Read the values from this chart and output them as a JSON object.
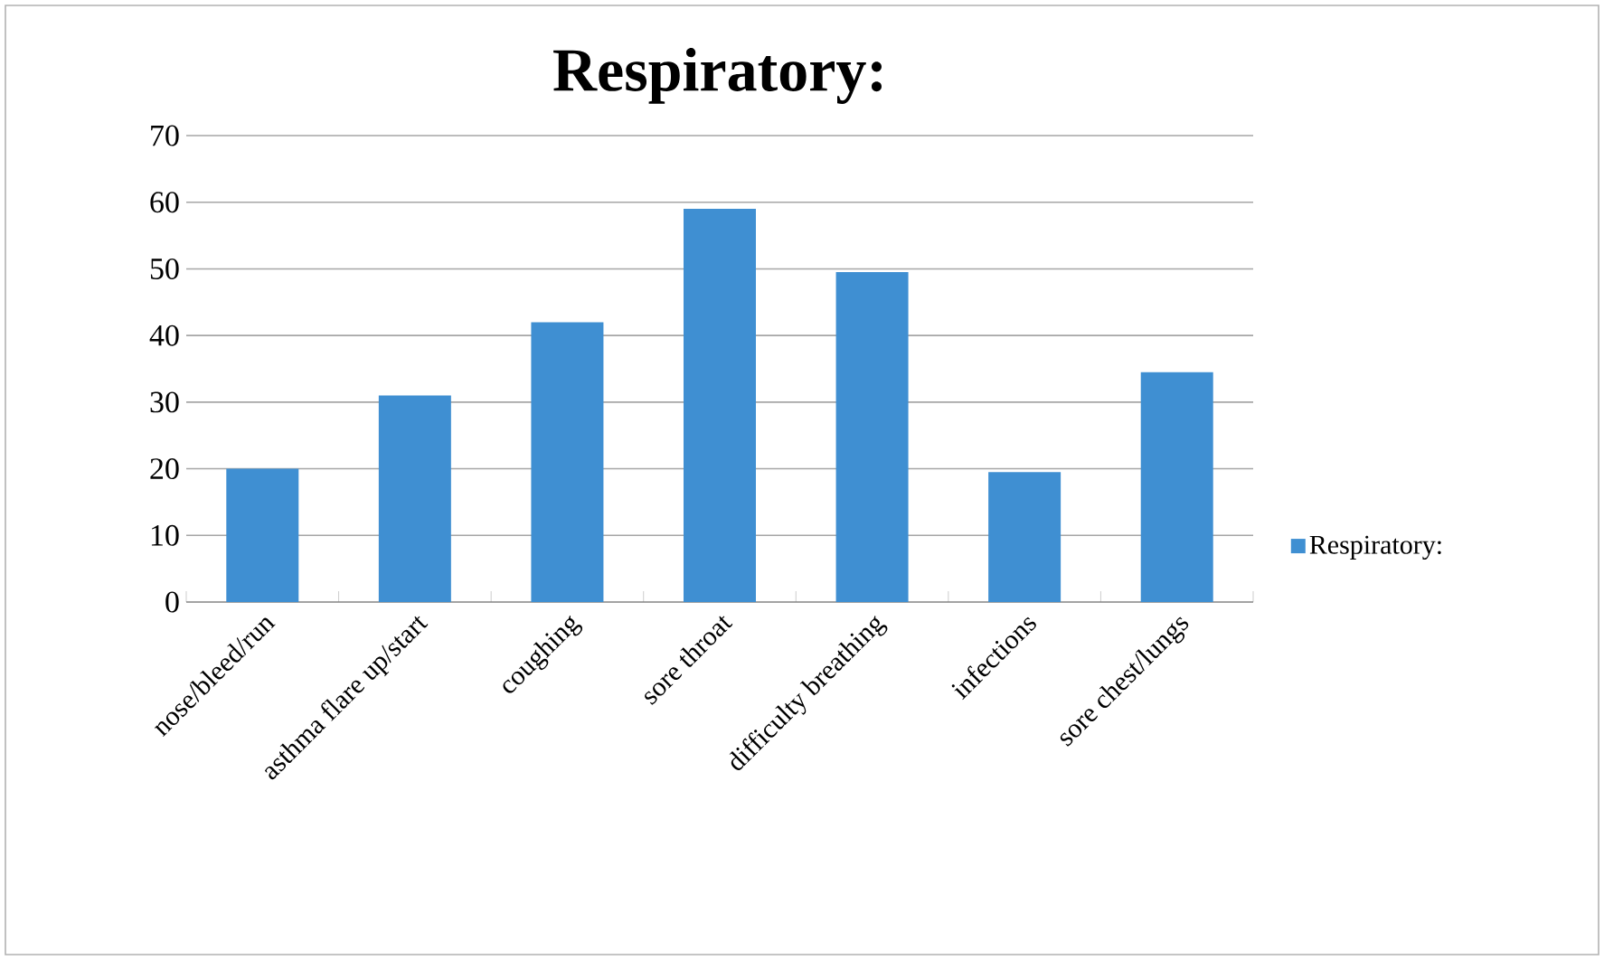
{
  "chart_data": {
    "type": "bar",
    "title": "Respiratory:",
    "categories": [
      "nose/bleed/run",
      "asthma flare up/start",
      "coughing",
      "sore throat",
      "difficulty breathing",
      "infections",
      "sore chest/lungs"
    ],
    "series": [
      {
        "name": "Respiratory:",
        "color": "#3f8fd2",
        "values": [
          20,
          31,
          42,
          59,
          49.5,
          19.5,
          34.5
        ]
      }
    ],
    "ylim": [
      0,
      70
    ],
    "yticks": [
      0,
      10,
      20,
      30,
      40,
      50,
      60,
      70
    ],
    "grid": "y",
    "legend": "right"
  }
}
